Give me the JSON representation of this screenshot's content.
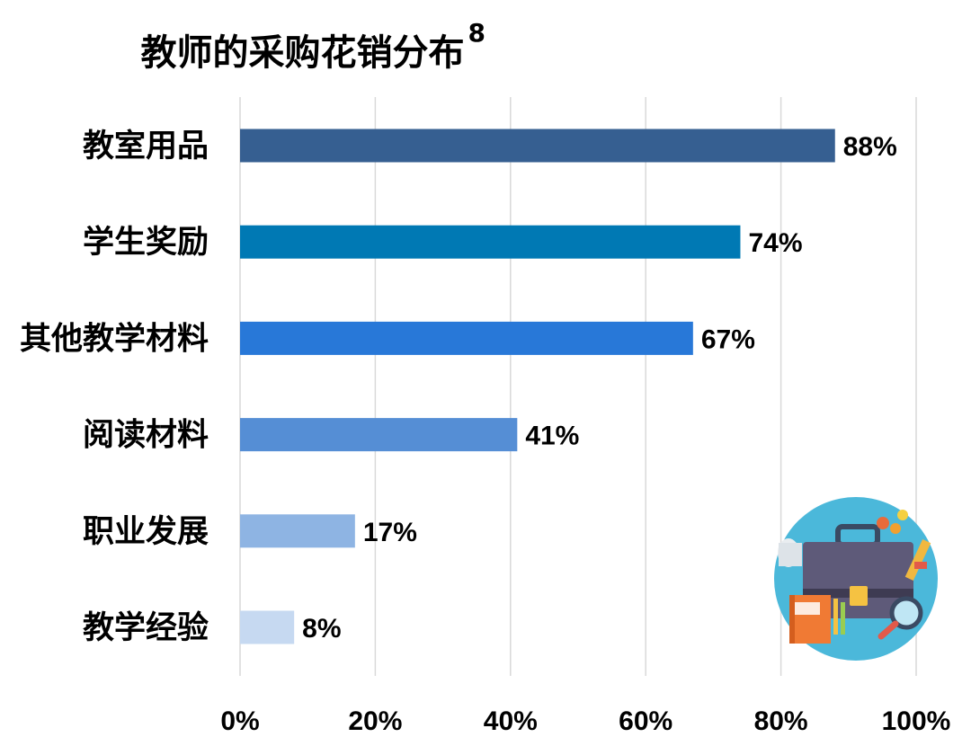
{
  "chart_data": {
    "type": "bar",
    "orientation": "horizontal",
    "title": "教师的采购花销分布",
    "title_superscript": "8",
    "categories": [
      "教室用品",
      "学生奖励",
      "其他教学材料",
      "阅读材料",
      "职业发展",
      "教学经验"
    ],
    "values": [
      88,
      74,
      67,
      41,
      17,
      8
    ],
    "value_labels": [
      "88%",
      "74%",
      "67%",
      "41%",
      "17%",
      "8%"
    ],
    "bar_colors": [
      "#365F91",
      "#0079B4",
      "#2878D8",
      "#558ED5",
      "#8EB4E3",
      "#C6D9F1"
    ],
    "xlim": [
      0,
      100
    ],
    "x_ticks": [
      0,
      20,
      40,
      60,
      80,
      100
    ],
    "x_tick_labels": [
      "0%",
      "20%",
      "40%",
      "60%",
      "80%",
      "100%"
    ],
    "grid": "vertical",
    "grid_color": "#D9D9D9",
    "xlabel": "",
    "ylabel": "",
    "legend": "none"
  },
  "decoration": {
    "icon": "briefcase-illustration-icon",
    "circle_color": "#4BB8DA"
  }
}
